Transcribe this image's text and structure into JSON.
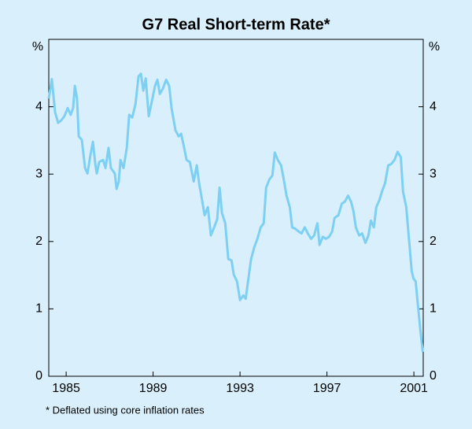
{
  "chart_data": {
    "type": "line",
    "title": "G7 Real Short-term Rate*",
    "y_label": "%",
    "note": "*  Deflated using core inflation rates",
    "xlim": [
      1984.2,
      2001.43
    ],
    "xticks": [
      1985,
      1989,
      1993,
      1997,
      2001
    ],
    "ylim": [
      0,
      5
    ],
    "yticks": [
      0,
      1,
      2,
      3,
      4
    ],
    "grid": false,
    "x": [
      1984.2,
      1984.34,
      1984.49,
      1984.63,
      1984.78,
      1984.92,
      1985.07,
      1985.21,
      1985.32,
      1985.4,
      1985.5,
      1985.58,
      1985.72,
      1985.87,
      1985.98,
      1986.11,
      1986.23,
      1986.34,
      1986.41,
      1986.52,
      1986.7,
      1986.81,
      1986.95,
      1987.06,
      1987.24,
      1987.32,
      1987.42,
      1987.5,
      1987.64,
      1987.79,
      1987.9,
      1988.04,
      1988.19,
      1988.33,
      1988.44,
      1988.55,
      1988.66,
      1988.8,
      1988.95,
      1989.09,
      1989.2,
      1989.31,
      1989.45,
      1989.6,
      1989.74,
      1989.85,
      1990.03,
      1990.18,
      1990.29,
      1990.43,
      1990.54,
      1990.69,
      1990.87,
      1991.01,
      1991.12,
      1991.23,
      1991.37,
      1991.52,
      1991.66,
      1991.81,
      1991.95,
      1992.06,
      1992.17,
      1992.32,
      1992.46,
      1992.61,
      1992.71,
      1992.86,
      1993.0,
      1993.15,
      1993.26,
      1993.37,
      1993.51,
      1993.66,
      1993.8,
      1993.95,
      1994.09,
      1994.2,
      1994.35,
      1994.49,
      1994.6,
      1994.74,
      1994.89,
      1995.03,
      1995.14,
      1995.29,
      1995.4,
      1995.54,
      1995.69,
      1995.83,
      1995.98,
      1996.12,
      1996.27,
      1996.41,
      1996.56,
      1996.66,
      1996.81,
      1996.95,
      1997.1,
      1997.24,
      1997.35,
      1997.53,
      1997.68,
      1997.82,
      1997.97,
      1998.11,
      1998.22,
      1998.33,
      1998.48,
      1998.62,
      1998.77,
      1998.91,
      1999.02,
      1999.16,
      1999.27,
      1999.42,
      1999.53,
      1999.67,
      1999.82,
      1999.96,
      2000.11,
      2000.25,
      2000.4,
      2000.5,
      2000.65,
      2000.76,
      2000.9,
      2000.98,
      2001.08,
      2001.19,
      2001.3,
      2001.41
    ],
    "series": [
      {
        "color": "#7ed0f2",
        "values": [
          4.12,
          4.41,
          3.92,
          3.76,
          3.8,
          3.86,
          3.98,
          3.88,
          3.98,
          4.31,
          4.12,
          3.56,
          3.51,
          3.09,
          3.01,
          3.27,
          3.48,
          3.15,
          3.01,
          3.18,
          3.21,
          3.09,
          3.39,
          3.09,
          3.01,
          2.78,
          2.89,
          3.21,
          3.09,
          3.39,
          3.88,
          3.84,
          4.04,
          4.45,
          4.49,
          4.24,
          4.42,
          3.86,
          4.09,
          4.31,
          4.4,
          4.19,
          4.27,
          4.4,
          4.31,
          3.98,
          3.65,
          3.56,
          3.6,
          3.39,
          3.21,
          3.18,
          2.89,
          3.13,
          2.86,
          2.66,
          2.39,
          2.51,
          2.09,
          2.21,
          2.33,
          2.8,
          2.42,
          2.27,
          1.74,
          1.72,
          1.51,
          1.41,
          1.13,
          1.2,
          1.15,
          1.41,
          1.74,
          1.92,
          2.04,
          2.21,
          2.27,
          2.8,
          2.92,
          2.98,
          3.32,
          3.21,
          3.13,
          2.89,
          2.68,
          2.51,
          2.21,
          2.19,
          2.15,
          2.12,
          2.21,
          2.12,
          2.04,
          2.09,
          2.27,
          1.95,
          2.07,
          2.04,
          2.07,
          2.15,
          2.35,
          2.39,
          2.56,
          2.59,
          2.68,
          2.59,
          2.45,
          2.21,
          2.09,
          2.12,
          1.98,
          2.09,
          2.31,
          2.21,
          2.51,
          2.62,
          2.74,
          2.86,
          3.13,
          3.15,
          3.21,
          3.33,
          3.25,
          2.74,
          2.51,
          2.09,
          1.56,
          1.45,
          1.41,
          1.04,
          0.68,
          0.36
        ]
      }
    ]
  }
}
